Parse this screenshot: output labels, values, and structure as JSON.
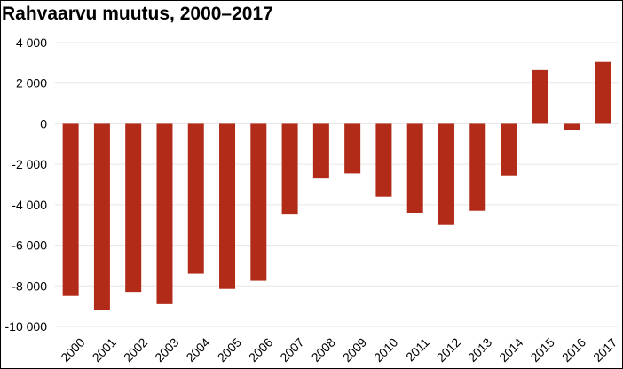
{
  "chart_data": {
    "type": "bar",
    "title": "Rahvaarvu muutus, 2000–2017",
    "xlabel": "",
    "ylabel": "",
    "categories": [
      "2000",
      "2001",
      "2002",
      "2003",
      "2004",
      "2005",
      "2006",
      "2007",
      "2008",
      "2009",
      "2010",
      "2011",
      "2012",
      "2013",
      "2014",
      "2015",
      "2016",
      "2017"
    ],
    "values": [
      -8500,
      -9200,
      -8300,
      -8900,
      -7400,
      -8150,
      -7750,
      -4450,
      -2700,
      -2450,
      -3600,
      -4400,
      -5000,
      -4300,
      -2550,
      2650,
      -300,
      3050
    ],
    "ylim": [
      -10000,
      4000
    ],
    "yticks": [
      4000,
      2000,
      0,
      -2000,
      -4000,
      -6000,
      -8000,
      -10000
    ],
    "ytick_labels": [
      "4 000",
      "2 000",
      "0",
      "-2 000",
      "-4 000",
      "-6 000",
      "-8 000",
      "-10 000"
    ],
    "bar_color": "#b22b18",
    "grid": true,
    "grid_color": "#e6e6e6",
    "legend": "none"
  }
}
